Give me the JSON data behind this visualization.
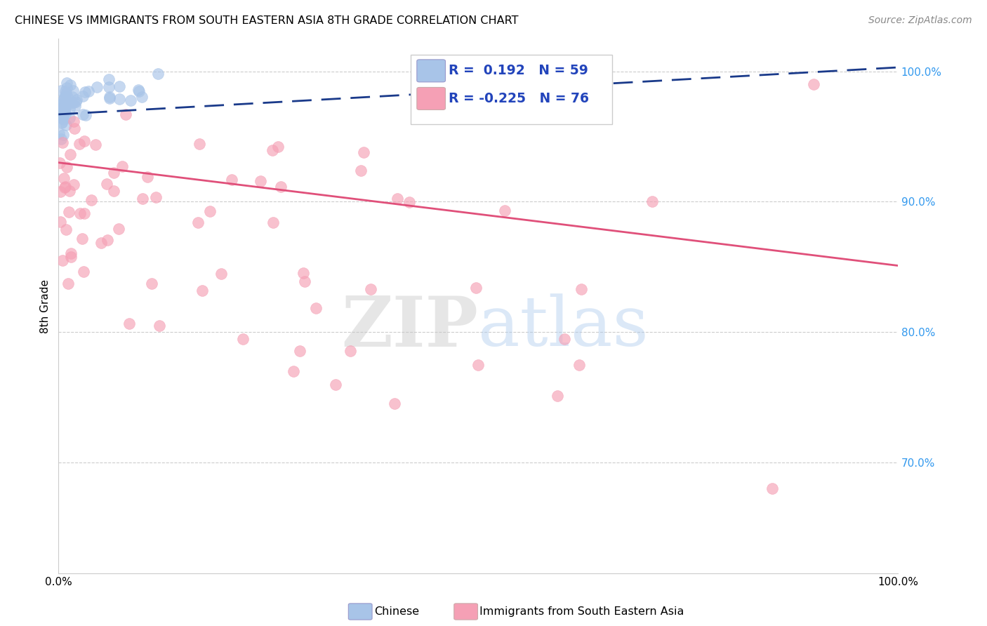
{
  "title": "CHINESE VS IMMIGRANTS FROM SOUTH EASTERN ASIA 8TH GRADE CORRELATION CHART",
  "source": "Source: ZipAtlas.com",
  "ylabel": "8th Grade",
  "xlim": [
    0.0,
    1.0
  ],
  "ylim": [
    0.615,
    1.025
  ],
  "yticks": [
    0.7,
    0.8,
    0.9,
    1.0
  ],
  "ytick_labels": [
    "70.0%",
    "80.0%",
    "90.0%",
    "100.0%"
  ],
  "xtick_labels": [
    "0.0%",
    "",
    "",
    "",
    "",
    "",
    "",
    "",
    "",
    "",
    "100.0%"
  ],
  "blue_color": "#a8c4e8",
  "pink_color": "#f5a0b5",
  "blue_line_color": "#1a3a8a",
  "pink_line_color": "#e0507a",
  "legend_R_blue": "0.192",
  "legend_N_blue": "59",
  "legend_R_pink": "-0.225",
  "legend_N_pink": "76",
  "blue_trend_x0": 0.0,
  "blue_trend_y0": 0.967,
  "blue_trend_x1": 1.0,
  "blue_trend_y1": 1.003,
  "pink_trend_x0": 0.0,
  "pink_trend_y0": 0.93,
  "pink_trend_x1": 1.0,
  "pink_trend_y1": 0.851
}
